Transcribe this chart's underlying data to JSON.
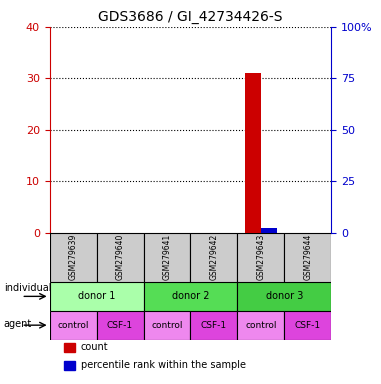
{
  "title": "GDS3686 / GI_42734426-S",
  "samples": [
    "GSM279639",
    "GSM279640",
    "GSM279641",
    "GSM279642",
    "GSM279643",
    "GSM279644"
  ],
  "count_values": [
    0,
    0,
    0,
    0,
    31,
    0
  ],
  "percentile_values": [
    0,
    0,
    0,
    0,
    2,
    0
  ],
  "left_ylim": [
    0,
    40
  ],
  "left_yticks": [
    0,
    10,
    20,
    30,
    40
  ],
  "right_ylim": [
    0,
    100
  ],
  "right_yticks": [
    0,
    25,
    50,
    75,
    100
  ],
  "right_yticklabels": [
    "0",
    "25",
    "50",
    "75",
    "100%"
  ],
  "left_tick_color": "#cc0000",
  "right_tick_color": "#0000cc",
  "bar_color_count": "#cc0000",
  "bar_color_percentile": "#0000cc",
  "bar_width": 0.35,
  "donor_row": [
    {
      "label": "donor 1",
      "span": [
        0,
        2
      ],
      "color": "#aaffaa"
    },
    {
      "label": "donor 2",
      "span": [
        2,
        4
      ],
      "color": "#55dd55"
    },
    {
      "label": "donor 3",
      "span": [
        4,
        6
      ],
      "color": "#44cc44"
    }
  ],
  "agent_row": [
    {
      "label": "control",
      "span": [
        0,
        1
      ],
      "color": "#ee88ee"
    },
    {
      "label": "CSF-1",
      "span": [
        1,
        2
      ],
      "color": "#dd44dd"
    },
    {
      "label": "control",
      "span": [
        2,
        3
      ],
      "color": "#ee88ee"
    },
    {
      "label": "CSF-1",
      "span": [
        3,
        4
      ],
      "color": "#dd44dd"
    },
    {
      "label": "control",
      "span": [
        4,
        5
      ],
      "color": "#ee88ee"
    },
    {
      "label": "CSF-1",
      "span": [
        5,
        6
      ],
      "color": "#dd44dd"
    }
  ],
  "legend_items": [
    {
      "label": "count",
      "color": "#cc0000"
    },
    {
      "label": "percentile rank within the sample",
      "color": "#0000cc"
    }
  ],
  "sample_box_color": "#cccccc",
  "grid_color": "#000000",
  "grid_linestyle": "dotted"
}
